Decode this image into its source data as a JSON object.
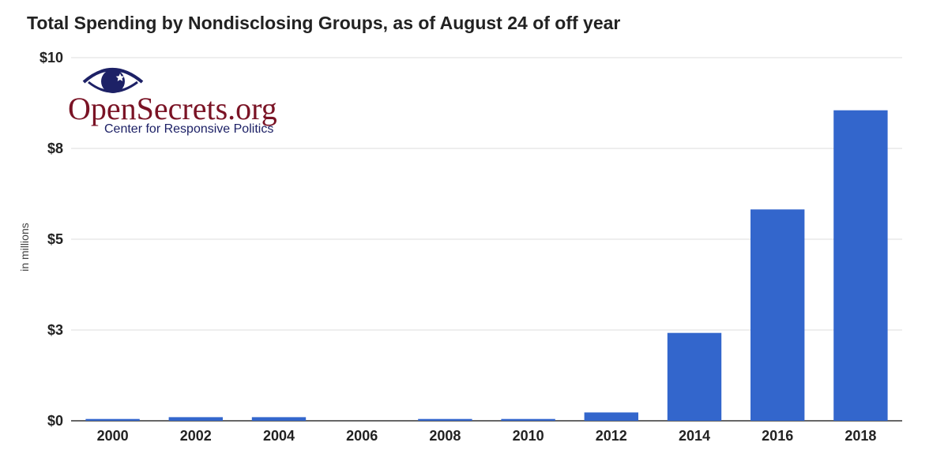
{
  "title": "Total Spending by Nondisclosing Groups, as of August 24 of off year",
  "logo": {
    "name": "OpenSecrets.org",
    "tagline": "Center for Responsive Politics",
    "colors": {
      "eye": "#1d2166",
      "wordmark": "#7a1325"
    }
  },
  "colors": {
    "bar": "#3366cc",
    "grid": "#dddddd",
    "axis": "#333333",
    "text": "#222222"
  },
  "chart_data": {
    "type": "bar",
    "title": "Total Spending by Nondisclosing Groups, as of August 24 of off year",
    "xlabel": "",
    "ylabel": "in millions",
    "categories": [
      "2000",
      "2002",
      "2004",
      "2006",
      "2008",
      "2010",
      "2012",
      "2014",
      "2016",
      "2018"
    ],
    "values": [
      0.05,
      0.1,
      0.1,
      0.0,
      0.05,
      0.05,
      0.23,
      2.42,
      5.82,
      8.55
    ],
    "ylim": [
      0,
      10
    ],
    "yticks": [
      0,
      2.5,
      5,
      7.5,
      10
    ],
    "ytick_labels": [
      "$0",
      "$3",
      "$5",
      "$8",
      "$10"
    ],
    "grid": true,
    "legend": "none"
  }
}
